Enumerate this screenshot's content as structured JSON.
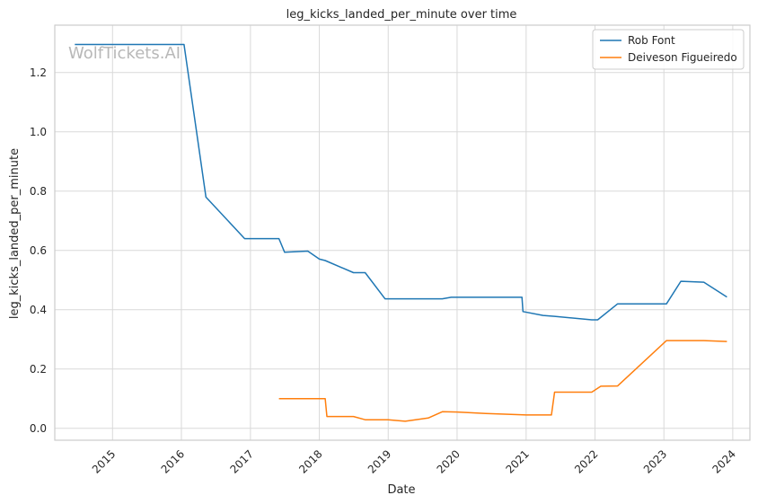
{
  "chart_data": {
    "type": "line",
    "title": "leg_kicks_landed_per_minute over time",
    "xlabel": "Date",
    "ylabel": "leg_kicks_landed_per_minute",
    "watermark": "WolfTickets.AI",
    "xlim": [
      "2014-03-01",
      "2024-04-01"
    ],
    "ylim": [
      -0.04,
      1.36
    ],
    "x_ticks": [
      "2015",
      "2016",
      "2017",
      "2018",
      "2019",
      "2020",
      "2021",
      "2022",
      "2023",
      "2024"
    ],
    "y_ticks": [
      "0.0",
      "0.2",
      "0.4",
      "0.6",
      "0.8",
      "1.0",
      "1.2"
    ],
    "grid": true,
    "legend_position": "top-right",
    "series": [
      {
        "name": "Rob Font",
        "color": "#1f77b4",
        "points": [
          [
            "2014-06-15",
            1.295
          ],
          [
            "2016-01-15",
            1.295
          ],
          [
            "2016-05-10",
            0.78
          ],
          [
            "2016-12-01",
            0.64
          ],
          [
            "2017-06-01",
            0.64
          ],
          [
            "2017-07-01",
            0.594
          ],
          [
            "2017-11-01",
            0.598
          ],
          [
            "2018-01-01",
            0.571
          ],
          [
            "2018-02-01",
            0.566
          ],
          [
            "2018-07-01",
            0.525
          ],
          [
            "2018-09-01",
            0.525
          ],
          [
            "2018-12-15",
            0.437
          ],
          [
            "2019-10-15",
            0.437
          ],
          [
            "2019-12-01",
            0.442
          ],
          [
            "2020-12-10",
            0.442
          ],
          [
            "2020-12-15",
            0.394
          ],
          [
            "2021-04-01",
            0.381
          ],
          [
            "2021-06-01",
            0.378
          ],
          [
            "2021-12-15",
            0.366
          ],
          [
            "2022-01-15",
            0.366
          ],
          [
            "2022-05-01",
            0.42
          ],
          [
            "2023-01-15",
            0.42
          ],
          [
            "2023-04-01",
            0.496
          ],
          [
            "2023-08-01",
            0.493
          ],
          [
            "2023-12-01",
            0.443
          ]
        ]
      },
      {
        "name": "Deiveson Figueiredo",
        "color": "#ff7f0e",
        "points": [
          [
            "2017-06-01",
            0.1
          ],
          [
            "2018-02-01",
            0.1
          ],
          [
            "2018-02-10",
            0.04
          ],
          [
            "2018-07-01",
            0.04
          ],
          [
            "2018-09-01",
            0.029
          ],
          [
            "2019-01-01",
            0.029
          ],
          [
            "2019-04-01",
            0.024
          ],
          [
            "2019-08-01",
            0.035
          ],
          [
            "2019-10-15",
            0.056
          ],
          [
            "2020-01-01",
            0.055
          ],
          [
            "2020-06-01",
            0.05
          ],
          [
            "2020-12-01",
            0.046
          ],
          [
            "2021-01-01",
            0.045
          ],
          [
            "2021-05-15",
            0.045
          ],
          [
            "2021-06-01",
            0.122
          ],
          [
            "2021-12-15",
            0.122
          ],
          [
            "2022-02-01",
            0.142
          ],
          [
            "2022-05-01",
            0.143
          ],
          [
            "2023-01-15",
            0.296
          ],
          [
            "2023-08-01",
            0.296
          ],
          [
            "2023-12-01",
            0.293
          ]
        ]
      }
    ]
  }
}
